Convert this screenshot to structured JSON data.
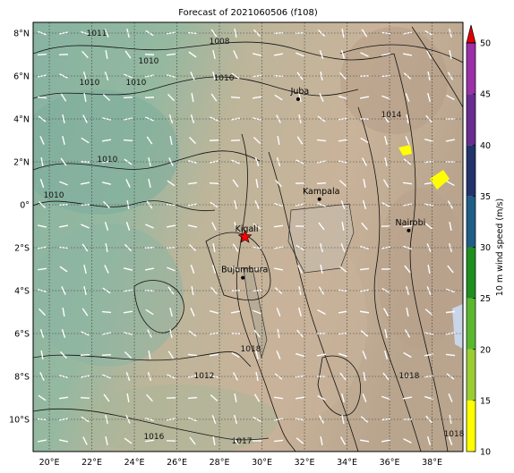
{
  "map": {
    "title": "Forecast of 2021060506 (f108)",
    "lon_range": [
      19.24,
      39.45
    ],
    "lat_range": [
      -11.5,
      8.5
    ],
    "lon_ticks": [
      {
        "value": 20,
        "label": "20°E"
      },
      {
        "value": 22,
        "label": "22°E"
      },
      {
        "value": 24,
        "label": "24°E"
      },
      {
        "value": 26,
        "label": "26°E"
      },
      {
        "value": 28,
        "label": "28°E"
      },
      {
        "value": 30,
        "label": "30°E"
      },
      {
        "value": 32,
        "label": "32°E"
      },
      {
        "value": 34,
        "label": "34°E"
      },
      {
        "value": 36,
        "label": "36°E"
      },
      {
        "value": 38,
        "label": "38°E"
      }
    ],
    "lat_ticks": [
      {
        "value": 8,
        "label": "8°N"
      },
      {
        "value": 6,
        "label": "6°N"
      },
      {
        "value": 4,
        "label": "4°N"
      },
      {
        "value": 2,
        "label": "2°N"
      },
      {
        "value": 0,
        "label": "0°"
      },
      {
        "value": -2,
        "label": "2°S"
      },
      {
        "value": -4,
        "label": "4°S"
      },
      {
        "value": -6,
        "label": "6°S"
      },
      {
        "value": -8,
        "label": "8°S"
      },
      {
        "value": -10,
        "label": "10°S"
      }
    ],
    "grid": true,
    "cities": [
      {
        "name": "Juba",
        "lon": 31.7,
        "lat": 4.92
      },
      {
        "name": "Kampala",
        "lon": 32.7,
        "lat": 0.26
      },
      {
        "name": "Nairobi",
        "lon": 36.9,
        "lat": -1.2
      },
      {
        "name": "Kigali",
        "lon": 29.2,
        "lat": -1.5
      },
      {
        "name": "Bujumbura",
        "lon": 29.1,
        "lat": -3.4
      }
    ],
    "star": {
      "lon": 29.2,
      "lat": -1.5,
      "color": "#ff0000"
    },
    "contour_labels": [
      {
        "label": "1011",
        "lon": 22.23,
        "lat": 8.0
      },
      {
        "label": "1008",
        "lon": 28.0,
        "lat": 7.63
      },
      {
        "label": "1010",
        "lon": 24.67,
        "lat": 6.71
      },
      {
        "label": "1010",
        "lon": 21.89,
        "lat": 5.71
      },
      {
        "label": "1010",
        "lon": 24.08,
        "lat": 5.71
      },
      {
        "label": "1010",
        "lon": 28.21,
        "lat": 5.92
      },
      {
        "label": "1010",
        "lon": 22.73,
        "lat": 2.13
      },
      {
        "label": "1010",
        "lon": 20.21,
        "lat": 0.46
      },
      {
        "label": "1012",
        "lon": 27.28,
        "lat": -7.96
      },
      {
        "label": "1016",
        "lon": 24.92,
        "lat": -10.79
      },
      {
        "label": "1017",
        "lon": 29.05,
        "lat": -11.0
      },
      {
        "label": "1018",
        "lon": 29.47,
        "lat": -6.71
      },
      {
        "label": "1014",
        "lon": 36.08,
        "lat": 4.21
      },
      {
        "label": "1018",
        "lon": 36.92,
        "lat": -7.96
      },
      {
        "label": "1018",
        "lon": 39.03,
        "lat": -10.67
      }
    ]
  },
  "colorbar": {
    "label": "10 m wind speed (m/s)",
    "range": [
      10,
      50
    ],
    "ticks": [
      10,
      15,
      20,
      25,
      30,
      35,
      40,
      45,
      50
    ],
    "colors": [
      "#ffff00",
      "#9acd32",
      "#5ab82e",
      "#1e8f1e",
      "#1f5d86",
      "#22336b",
      "#6a2c8e",
      "#9b30a8"
    ],
    "extend_color": "#e00000"
  }
}
